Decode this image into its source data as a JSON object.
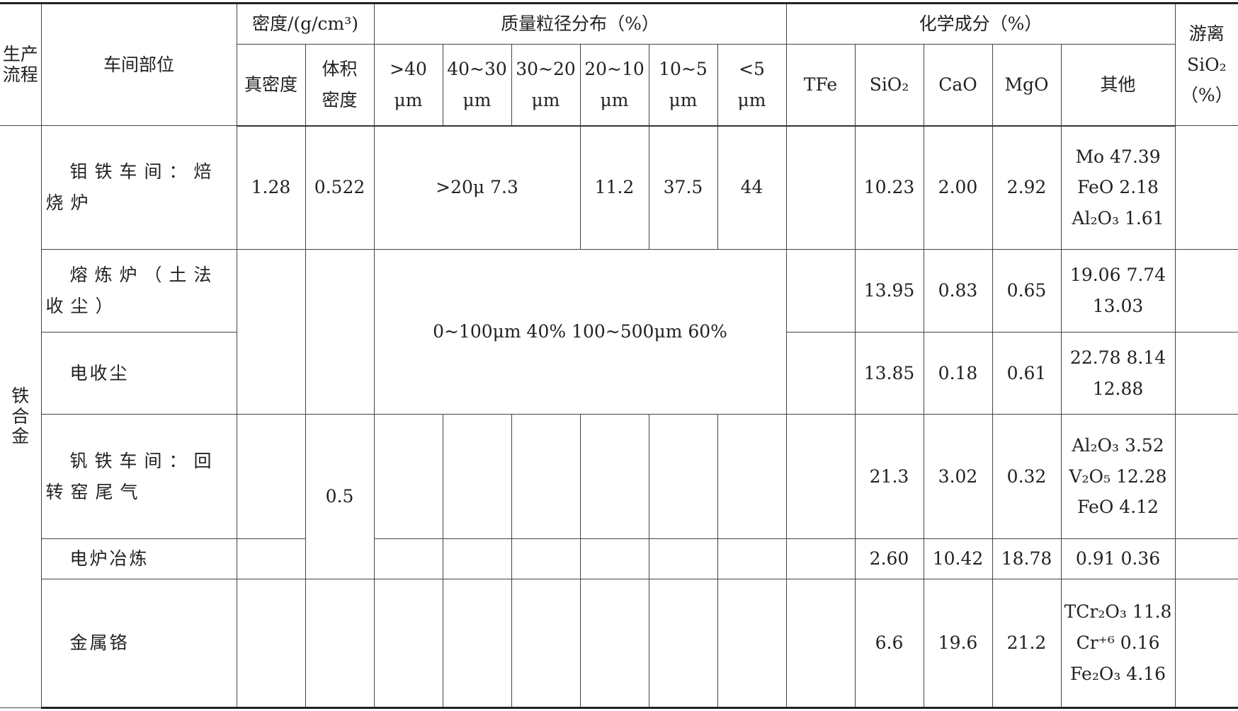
{
  "header": {
    "process": "生产\n流程",
    "location": "车间部位",
    "density_group": "密度/(g/cm³)",
    "particle_group": "质量粒径分布（%）",
    "chem_group": "化学成分（%）",
    "free_sio2": "游离\nSiO₂\n（%）",
    "true_density": "真密度",
    "bulk_density": "体积\n密度",
    "particle_cols": [
      ">40\nμm",
      "40~30\nμm",
      "30~20\nμm",
      "20~10\nμm",
      "10~5\nμm",
      "<5\nμm"
    ],
    "chem_cols": [
      "TFe",
      "SiO₂",
      "CaO",
      "MgO",
      "其他"
    ]
  },
  "process_name": "铁\n合\n金",
  "rows": [
    {
      "location": "钼铁车间：焙烧炉",
      "true_density": "1.28",
      "bulk_density": "0.522",
      "particle_merged": ">20μ   7.3",
      "p_20_10": "11.2",
      "p_10_5": "37.5",
      "p_lt5": "44",
      "tfe": "",
      "sio2": "10.23",
      "cao": "2.00",
      "mgo": "2.92",
      "other": "Mo  47.39\nFeO  2.18\nAl₂O₃  1.61",
      "free_sio2": ""
    },
    {
      "location": "熔炼炉（土法收尘）",
      "tfe": "",
      "sio2": "13.95",
      "cao": "0.83",
      "mgo": "0.65",
      "other": "19.06  7.74\n13.03",
      "free_sio2": ""
    },
    {
      "location": "电收尘",
      "tfe": "",
      "sio2": "13.85",
      "cao": "0.18",
      "mgo": "0.61",
      "other": "22.78  8.14\n12.88",
      "free_sio2": ""
    },
    {
      "location": "钒铁车间：回转窑尾气",
      "tfe": "",
      "sio2": "21.3",
      "cao": "3.02",
      "mgo": "0.32",
      "other": "Al₂O₃  3.52\nV₂O₅  12.28\nFeO  4.12",
      "free_sio2": ""
    },
    {
      "location": "电炉冶炼",
      "tfe": "",
      "sio2": "2.60",
      "cao": "10.42",
      "mgo": "18.78",
      "other": "0.91  0.36",
      "free_sio2": ""
    },
    {
      "location": "金属铬",
      "tfe": "",
      "sio2": "6.6",
      "cao": "19.6",
      "mgo": "21.2",
      "other": "TCr₂O₃  11.8\nCr⁺⁶  0.16\nFe₂O₃  4.16",
      "free_sio2": ""
    }
  ],
  "merged": {
    "particle_rows_2_3": "0~100μm   40%    100~500μm   60%",
    "bulk_density_rows_4_5": "0.5"
  }
}
